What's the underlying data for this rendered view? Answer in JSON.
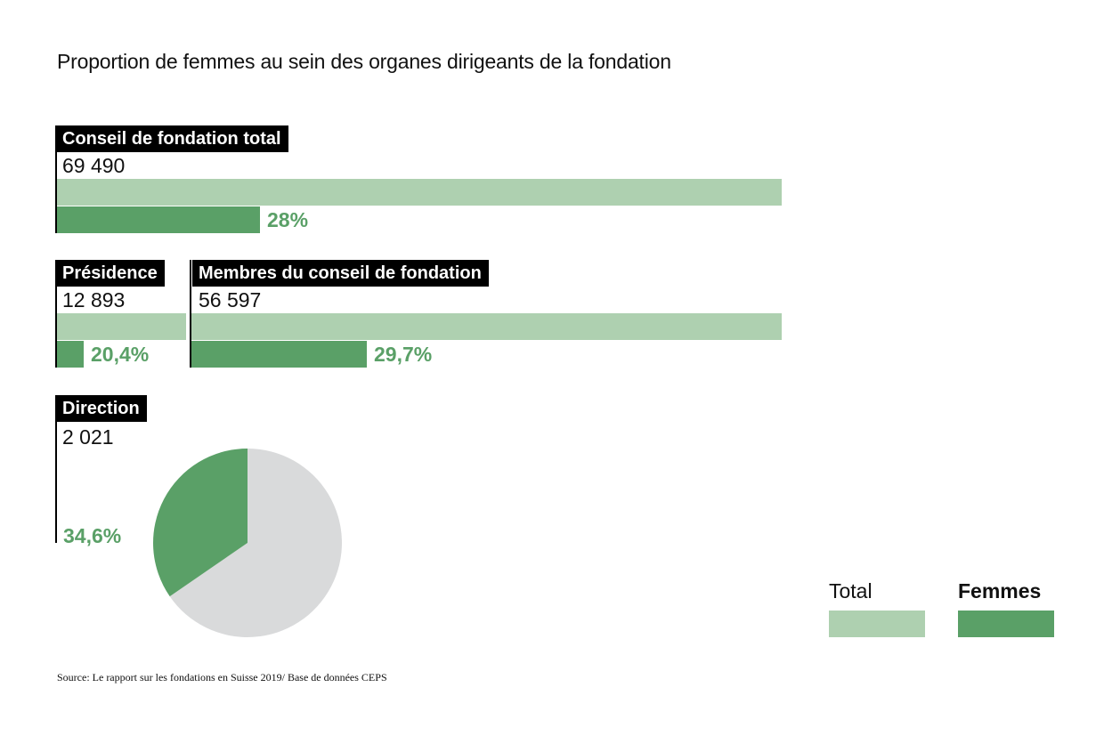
{
  "title": "Proportion de femmes au sein des organes dirigeants de la fondation",
  "colors": {
    "total": "#aed0b0",
    "femmes": "#5aa067",
    "pie_rest": "#d9dadb",
    "tag_bg": "#000000"
  },
  "chart_data": [
    {
      "type": "bar",
      "name": "Conseil de fondation total",
      "total_label": "69 490",
      "total": 69490,
      "women_share": 28,
      "pct_label": "28%"
    },
    {
      "type": "bar",
      "name": "Présidence",
      "total_label": "12 893",
      "total": 12893,
      "women_share": 20.4,
      "pct_label": "20,4%"
    },
    {
      "type": "bar",
      "name": "Membres du conseil de fondation",
      "total_label": "56 597",
      "total": 56597,
      "women_share": 29.7,
      "pct_label": "29,7%"
    },
    {
      "type": "pie",
      "name": "Direction",
      "total_label": "2 021",
      "total": 2021,
      "women_share": 34.6,
      "pct_label": "34,6%"
    }
  ],
  "legend": {
    "total": "Total",
    "femmes": "Femmes"
  },
  "source": "Source: Le rapport sur les fondations en Suisse 2019/ Base de données CEPS"
}
